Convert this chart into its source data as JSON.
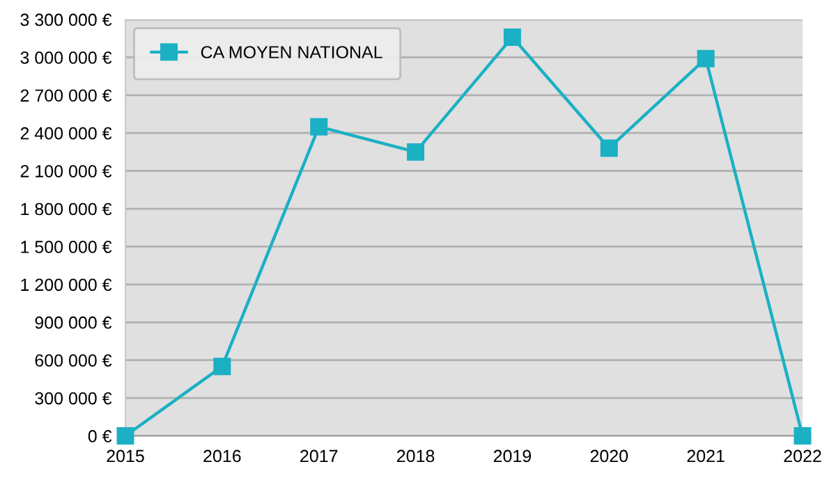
{
  "chart_data": {
    "type": "line",
    "categories": [
      "2015",
      "2016",
      "2017",
      "2018",
      "2019",
      "2020",
      "2021",
      "2022"
    ],
    "series": [
      {
        "name": "CA MOYEN NATIONAL",
        "color": "#1bb0c4",
        "values": [
          0,
          550000,
          2450000,
          2250000,
          3160000,
          2280000,
          2990000,
          0
        ]
      }
    ],
    "ylim": [
      0,
      3300000
    ],
    "yticks": [
      {
        "value": 0,
        "label": "0 €"
      },
      {
        "value": 300000,
        "label": "300 000 €"
      },
      {
        "value": 600000,
        "label": "600 000 €"
      },
      {
        "value": 900000,
        "label": "900 000 €"
      },
      {
        "value": 1200000,
        "label": "1 200 000 €"
      },
      {
        "value": 1500000,
        "label": "1 500 000 €"
      },
      {
        "value": 1800000,
        "label": "1 800 000 €"
      },
      {
        "value": 2100000,
        "label": "2 100 000 €"
      },
      {
        "value": 2400000,
        "label": "2 400 000 €"
      },
      {
        "value": 2700000,
        "label": "2 700 000 €"
      },
      {
        "value": 3000000,
        "label": "3 000 000 €"
      },
      {
        "value": 3300000,
        "label": "3 300 000 €"
      }
    ],
    "grid": "y",
    "legend": "top left",
    "marker": "square",
    "line_style": "solid"
  }
}
